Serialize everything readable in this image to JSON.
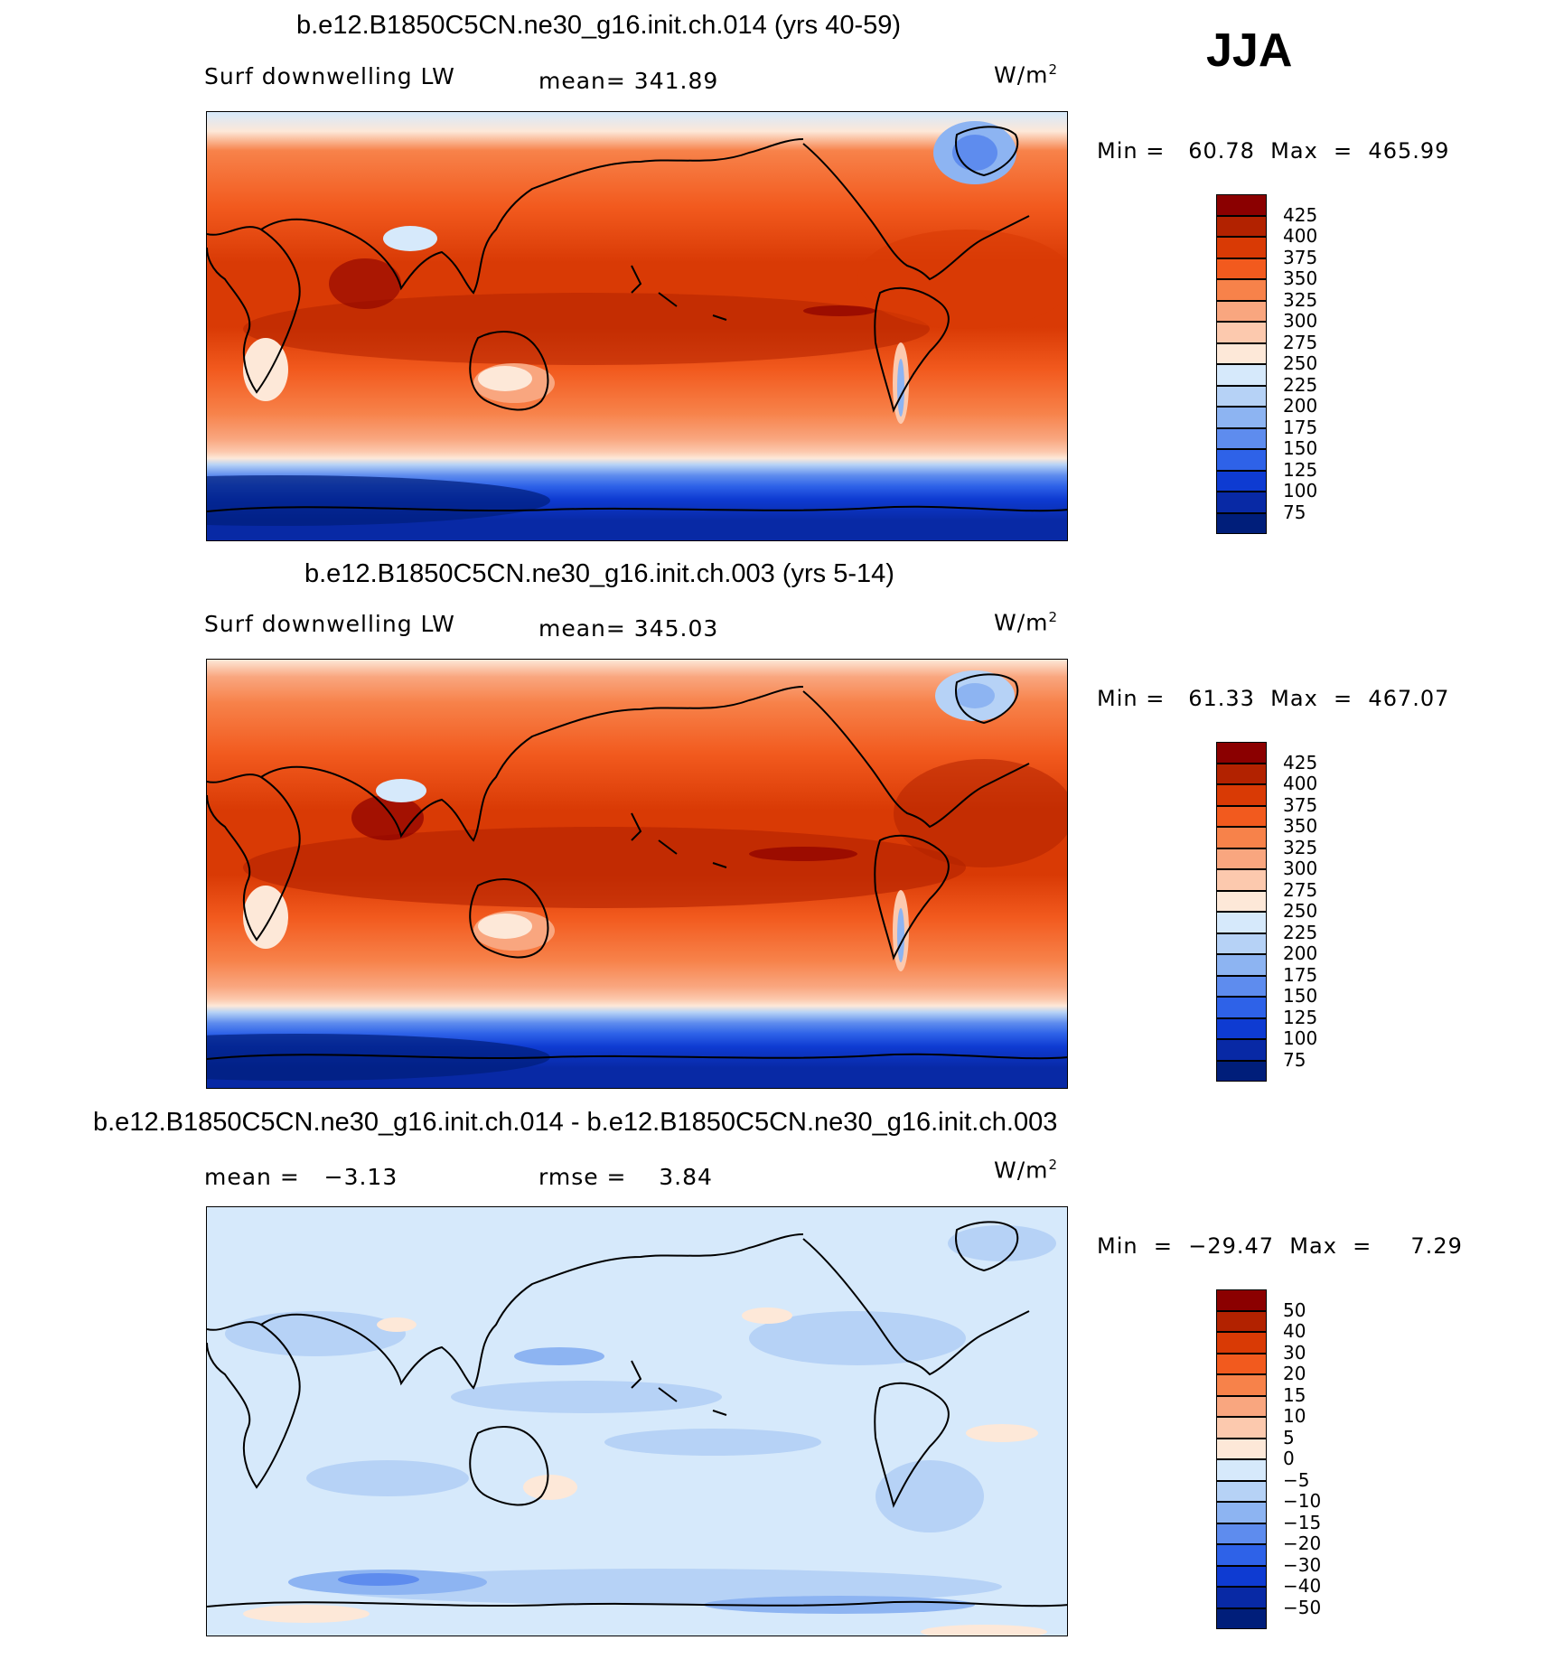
{
  "season": "JJA",
  "panels": [
    {
      "title": "b.e12.B1850C5CN.ne30_g16.init.ch.014 (yrs 40-59)",
      "variable": "Surf downwelling LW",
      "stat_text": "mean= 341.89",
      "units": "W/m",
      "units_sup": "2",
      "minmax": "Min =   60.78  Max  =  465.99",
      "colorbar": {
        "labels": [
          "425",
          "400",
          "375",
          "350",
          "325",
          "300",
          "275",
          "250",
          "225",
          "200",
          "175",
          "150",
          "125",
          "100",
          "75"
        ],
        "colors": [
          "#8B0000",
          "#B22200",
          "#D93A05",
          "#F25A1E",
          "#F7824A",
          "#F9A67F",
          "#FCC9AE",
          "#FDE8D8",
          "#D6E9FB",
          "#B6D2F6",
          "#8DB4F2",
          "#5E8CEE",
          "#2E62E8",
          "#0E3BD2",
          "#0829A5",
          "#001E7A"
        ]
      }
    },
    {
      "title": "b.e12.B1850C5CN.ne30_g16.init.ch.003 (yrs 5-14)",
      "variable": "Surf downwelling LW",
      "stat_text": "mean= 345.03",
      "units": "W/m",
      "units_sup": "2",
      "minmax": "Min =   61.33  Max  =  467.07",
      "colorbar": {
        "labels": [
          "425",
          "400",
          "375",
          "350",
          "325",
          "300",
          "275",
          "250",
          "225",
          "200",
          "175",
          "150",
          "125",
          "100",
          "75"
        ],
        "colors": [
          "#8B0000",
          "#B22200",
          "#D93A05",
          "#F25A1E",
          "#F7824A",
          "#F9A67F",
          "#FCC9AE",
          "#FDE8D8",
          "#D6E9FB",
          "#B6D2F6",
          "#8DB4F2",
          "#5E8CEE",
          "#2E62E8",
          "#0E3BD2",
          "#0829A5",
          "#001E7A"
        ]
      }
    },
    {
      "title": "b.e12.B1850C5CN.ne30_g16.init.ch.014 - b.e12.B1850C5CN.ne30_g16.init.ch.003",
      "stat_mean": "mean =   −3.13",
      "stat_rmse": "rmse =    3.84",
      "units": "W/m",
      "units_sup": "2",
      "minmax": "Min  =  −29.47  Max  =     7.29",
      "colorbar": {
        "labels": [
          "50",
          "40",
          "30",
          "20",
          "15",
          "10",
          "5",
          "0",
          "−5",
          "−10",
          "−15",
          "−20",
          "−30",
          "−40",
          "−50"
        ],
        "colors": [
          "#8B0000",
          "#B22200",
          "#D93A05",
          "#F25A1E",
          "#F7824A",
          "#F9A67F",
          "#FCC9AE",
          "#FDE8D8",
          "#D6E9FB",
          "#B6D2F6",
          "#8DB4F2",
          "#5E8CEE",
          "#2E62E8",
          "#0E3BD2",
          "#0829A5",
          "#001E7A"
        ]
      }
    }
  ]
}
